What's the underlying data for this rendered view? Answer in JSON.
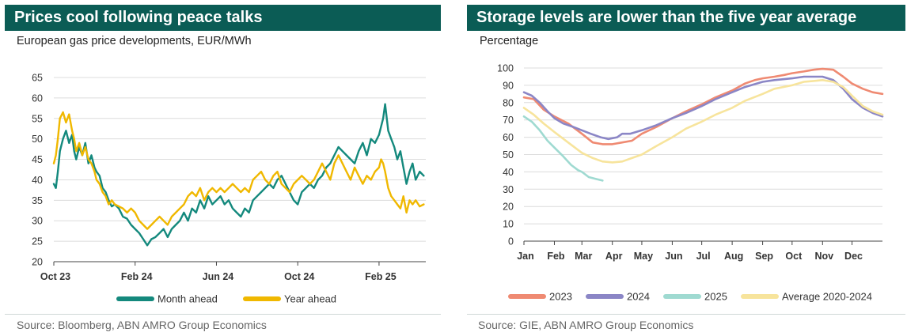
{
  "left": {
    "title": "Prices cool following peace talks",
    "subtitle": "European gas price developments, EUR/MWh",
    "source": "Source: Bloomberg, ABN AMRO Group Economics"
  },
  "right": {
    "title": "Storage levels are lower than the five year average",
    "subtitle": "Percentage",
    "source": "Source: GIE, ABN AMRO Group Economics"
  },
  "colors": {
    "month_ahead": "#14897d",
    "year_ahead": "#f0b800",
    "s2023": "#ef8a72",
    "s2024": "#8b86c6",
    "s2025": "#9fdad1",
    "avg": "#f7e49c",
    "grid": "#dcdcdc"
  },
  "chart_data": [
    {
      "type": "line",
      "title": "Prices cool following peace talks",
      "ylabel": "EUR/MWh",
      "ylim": [
        20,
        65
      ],
      "yticks": [
        "20",
        "25",
        "30",
        "35",
        "40",
        "45",
        "50",
        "55",
        "60",
        "65"
      ],
      "xlim": [
        0,
        18.3
      ],
      "xticks": [
        {
          "x": 0,
          "label": "Oct 23"
        },
        {
          "x": 4,
          "label": "Feb 24"
        },
        {
          "x": 8,
          "label": "Jun 24"
        },
        {
          "x": 12,
          "label": "Oct 24"
        },
        {
          "x": 16,
          "label": "Feb 25"
        }
      ],
      "series": [
        {
          "name": "Month ahead",
          "color_key": "month_ahead",
          "x": [
            0,
            0.1,
            0.2,
            0.3,
            0.45,
            0.6,
            0.75,
            0.9,
            1.0,
            1.1,
            1.25,
            1.4,
            1.55,
            1.7,
            1.85,
            2.0,
            2.1,
            2.25,
            2.4,
            2.55,
            2.7,
            2.85,
            3.0,
            3.2,
            3.4,
            3.6,
            3.8,
            4.0,
            4.2,
            4.4,
            4.6,
            4.8,
            5.0,
            5.2,
            5.4,
            5.6,
            5.8,
            6.0,
            6.2,
            6.4,
            6.6,
            6.8,
            7.0,
            7.2,
            7.4,
            7.6,
            7.8,
            8.0,
            8.2,
            8.4,
            8.6,
            8.8,
            9.0,
            9.2,
            9.4,
            9.6,
            9.8,
            10.0,
            10.2,
            10.4,
            10.6,
            10.8,
            11.0,
            11.2,
            11.4,
            11.6,
            11.8,
            12.0,
            12.2,
            12.4,
            12.6,
            12.8,
            13.0,
            13.2,
            13.4,
            13.6,
            13.8,
            14.0,
            14.2,
            14.4,
            14.6,
            14.8,
            15.0,
            15.2,
            15.4,
            15.6,
            15.8,
            16.0,
            16.1,
            16.2,
            16.3,
            16.45,
            16.6,
            16.75,
            16.9,
            17.05,
            17.2,
            17.35,
            17.5,
            17.65,
            17.8,
            18.0,
            18.2
          ],
          "values": [
            39,
            38,
            42,
            47,
            50,
            52,
            49,
            51,
            47,
            45,
            48,
            46,
            49,
            44,
            46,
            43,
            42,
            41,
            38,
            37,
            35,
            33.5,
            34,
            33,
            31,
            30.5,
            29,
            28,
            27,
            25.5,
            24,
            25.5,
            26,
            27,
            28,
            26,
            28,
            29,
            30,
            32,
            30,
            33,
            32,
            35,
            33,
            36,
            34,
            35,
            36,
            34,
            35,
            33,
            32,
            31,
            33,
            32,
            35,
            36,
            37,
            38,
            39,
            38,
            40,
            41,
            39,
            37,
            35,
            34,
            37,
            38,
            39,
            38,
            40,
            41,
            43,
            44,
            46,
            48,
            47,
            46,
            45,
            44,
            47,
            49,
            46,
            50,
            49,
            51,
            53,
            55,
            58.5,
            52,
            50,
            48,
            45,
            47,
            43,
            39,
            42,
            44,
            40,
            42,
            41
          ]
        },
        {
          "name": "Year ahead",
          "color_key": "year_ahead",
          "x": [
            0,
            0.1,
            0.2,
            0.3,
            0.45,
            0.6,
            0.75,
            0.9,
            1.0,
            1.1,
            1.25,
            1.4,
            1.55,
            1.7,
            1.85,
            2.0,
            2.1,
            2.25,
            2.4,
            2.55,
            2.7,
            2.85,
            3.0,
            3.2,
            3.4,
            3.6,
            3.8,
            4.0,
            4.2,
            4.4,
            4.6,
            4.8,
            5.0,
            5.2,
            5.4,
            5.6,
            5.8,
            6.0,
            6.2,
            6.4,
            6.6,
            6.8,
            7.0,
            7.2,
            7.4,
            7.6,
            7.8,
            8.0,
            8.2,
            8.4,
            8.6,
            8.8,
            9.0,
            9.2,
            9.4,
            9.6,
            9.8,
            10.0,
            10.2,
            10.4,
            10.6,
            10.8,
            11.0,
            11.2,
            11.4,
            11.6,
            11.8,
            12.0,
            12.2,
            12.4,
            12.6,
            12.8,
            13.0,
            13.2,
            13.4,
            13.6,
            13.8,
            14.0,
            14.2,
            14.4,
            14.6,
            14.8,
            15.0,
            15.2,
            15.4,
            15.6,
            15.8,
            16.0,
            16.1,
            16.2,
            16.3,
            16.45,
            16.6,
            16.75,
            16.9,
            17.05,
            17.2,
            17.35,
            17.5,
            17.65,
            17.8,
            18.0,
            18.2
          ],
          "values": [
            44,
            46,
            50,
            55,
            56.5,
            54,
            56,
            52,
            50,
            47,
            49,
            46,
            48,
            45,
            44,
            42,
            40,
            39,
            37,
            36,
            34,
            35,
            34,
            33.5,
            33,
            32,
            33,
            32,
            30,
            29,
            28,
            29,
            30,
            31,
            30,
            29,
            31,
            32,
            33,
            34,
            36,
            37,
            36,
            38,
            35,
            37,
            38,
            37,
            38,
            37,
            38,
            39,
            38,
            37,
            38,
            37,
            40,
            41,
            42,
            40,
            39,
            41,
            42,
            39,
            38,
            37,
            39,
            40,
            41,
            40,
            39,
            40,
            42,
            44,
            42,
            40,
            44,
            46,
            44,
            42,
            40,
            43,
            41,
            39,
            41,
            40,
            42,
            43,
            45,
            44,
            42,
            38,
            36,
            35,
            34,
            33,
            36,
            32,
            35,
            34,
            35,
            33.5,
            34
          ]
        }
      ]
    },
    {
      "type": "line",
      "title": "Storage levels are lower than the five year average",
      "ylabel": "Percentage",
      "ylim": [
        0,
        100
      ],
      "yticks": [
        "0",
        "10",
        "20",
        "30",
        "40",
        "50",
        "60",
        "70",
        "80",
        "90",
        "100"
      ],
      "xlim": [
        0,
        365
      ],
      "xticks": [
        {
          "x": 0,
          "label": "Jan"
        },
        {
          "x": 31,
          "label": "Feb"
        },
        {
          "x": 59,
          "label": "Mar"
        },
        {
          "x": 90,
          "label": "Apr"
        },
        {
          "x": 120,
          "label": "May"
        },
        {
          "x": 151,
          "label": "Jun"
        },
        {
          "x": 181,
          "label": "Jul"
        },
        {
          "x": 212,
          "label": "Aug"
        },
        {
          "x": 243,
          "label": "Sep"
        },
        {
          "x": 273,
          "label": "Oct"
        },
        {
          "x": 304,
          "label": "Nov"
        },
        {
          "x": 334,
          "label": "Dec"
        }
      ],
      "series": [
        {
          "name": "2023",
          "color_key": "s2023",
          "x": [
            0,
            10,
            20,
            31,
            45,
            59,
            70,
            80,
            90,
            100,
            110,
            120,
            135,
            151,
            165,
            181,
            195,
            212,
            225,
            235,
            243,
            255,
            265,
            273,
            285,
            295,
            304,
            315,
            325,
            334,
            345,
            355,
            365
          ],
          "values": [
            83,
            82,
            76,
            72,
            68,
            62,
            57,
            56,
            56,
            57,
            58,
            62,
            66,
            71,
            75,
            79,
            83,
            87,
            91,
            93,
            94,
            95,
            96,
            97,
            98,
            99,
            99.5,
            99,
            95,
            91,
            88,
            86,
            85
          ]
        },
        {
          "name": "2024",
          "color_key": "s2024",
          "x": [
            0,
            8,
            16,
            24,
            31,
            40,
            50,
            59,
            68,
            78,
            86,
            95,
            100,
            108,
            114,
            120,
            135,
            151,
            165,
            181,
            195,
            212,
            225,
            243,
            255,
            273,
            285,
            295,
            304,
            315,
            325,
            334,
            345,
            355,
            365
          ],
          "values": [
            86,
            84,
            80,
            75,
            71,
            68,
            66,
            64,
            62,
            60,
            59,
            60,
            62,
            62,
            63,
            64,
            67,
            71,
            74,
            78,
            82,
            86,
            89,
            92,
            93,
            94,
            95,
            95,
            95,
            93,
            88,
            82,
            77,
            74,
            72
          ]
        },
        {
          "name": "2025",
          "color_key": "s2025",
          "x": [
            0,
            8,
            16,
            24,
            31,
            40,
            48,
            55,
            59,
            66,
            73,
            80
          ],
          "values": [
            72,
            69,
            64,
            58,
            54,
            49,
            44,
            41,
            40,
            37,
            36,
            35
          ]
        },
        {
          "name": "Average 2020-2024",
          "color_key": "avg",
          "x": [
            0,
            10,
            20,
            31,
            45,
            59,
            70,
            80,
            90,
            100,
            110,
            120,
            135,
            151,
            165,
            181,
            195,
            212,
            225,
            243,
            255,
            273,
            285,
            295,
            304,
            315,
            325,
            334,
            345,
            355,
            365
          ],
          "values": [
            77,
            73,
            68,
            63,
            57,
            51,
            48,
            46,
            45.5,
            46,
            48,
            50,
            55,
            60,
            65,
            69,
            73,
            77,
            81,
            85,
            88,
            90,
            92,
            92.5,
            93,
            92,
            89,
            84,
            78,
            75,
            73
          ]
        }
      ]
    }
  ]
}
